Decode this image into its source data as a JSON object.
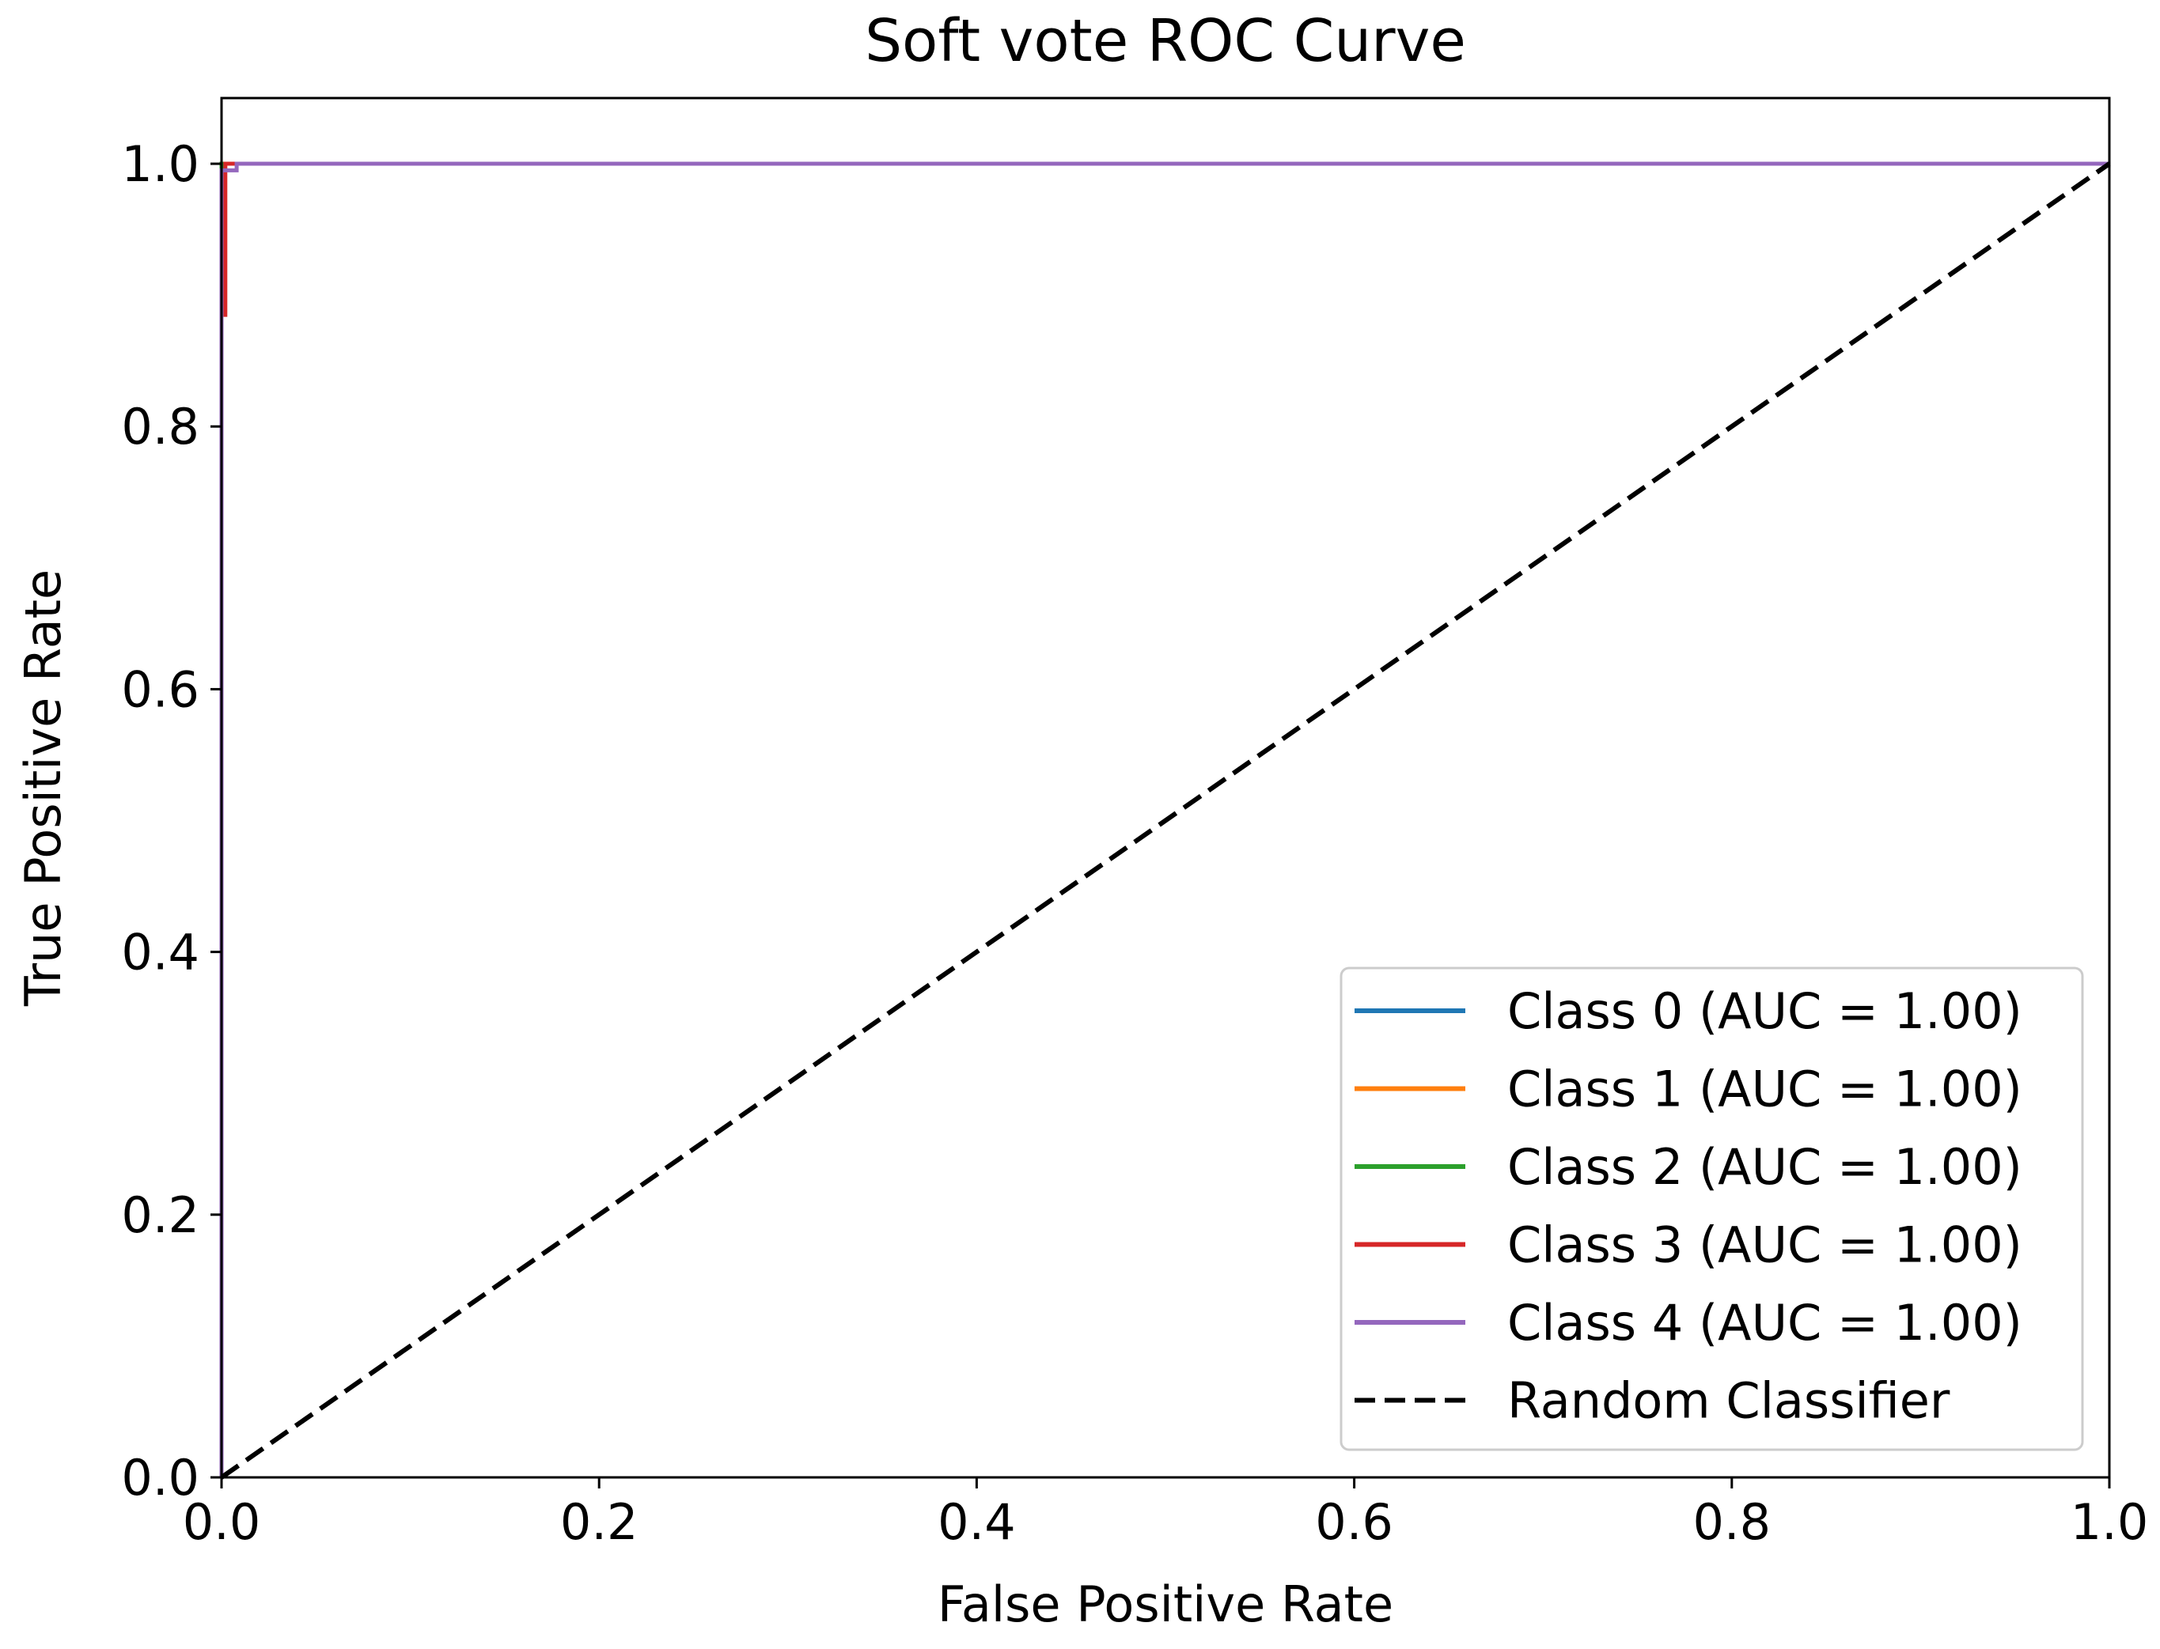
{
  "chart_data": {
    "type": "line",
    "title": "Soft vote ROC Curve",
    "xlabel": "False Positive Rate",
    "ylabel": "True Positive Rate",
    "xlim": [
      0.0,
      1.0
    ],
    "ylim": [
      0.0,
      1.05
    ],
    "xticks": [
      0.0,
      0.2,
      0.4,
      0.6,
      0.8,
      1.0
    ],
    "yticks": [
      0.0,
      0.2,
      0.4,
      0.6,
      0.8,
      1.0
    ],
    "xtick_labels": [
      "0.0",
      "0.2",
      "0.4",
      "0.6",
      "0.8",
      "1.0"
    ],
    "ytick_labels": [
      "0.0",
      "0.2",
      "0.4",
      "0.6",
      "0.8",
      "1.0"
    ],
    "grid": false,
    "legend_position": "lower-right",
    "series": [
      {
        "name": "Class 0 (AUC = 1.00)",
        "color": "#1f77b4",
        "style": "solid",
        "x": [
          0.0,
          0.0,
          1.0
        ],
        "y": [
          0.0,
          1.0,
          1.0
        ]
      },
      {
        "name": "Class 1 (AUC = 1.00)",
        "color": "#ff7f0e",
        "style": "solid",
        "x": [
          0.0,
          0.0,
          1.0
        ],
        "y": [
          0.0,
          1.0,
          1.0
        ]
      },
      {
        "name": "Class 2 (AUC = 1.00)",
        "color": "#2ca02c",
        "style": "solid",
        "x": [
          0.0,
          0.0,
          1.0
        ],
        "y": [
          0.0,
          1.0,
          1.0
        ]
      },
      {
        "name": "Class 3 (AUC = 1.00)",
        "color": "#d62728",
        "style": "solid",
        "x": [
          0.0,
          0.0,
          0.002,
          0.002,
          1.0
        ],
        "y": [
          0.0,
          0.885,
          0.885,
          1.0,
          1.0
        ]
      },
      {
        "name": "Class 4 (AUC = 1.00)",
        "color": "#9467bd",
        "style": "solid",
        "x": [
          0.0,
          0.0,
          0.008,
          0.008,
          1.0
        ],
        "y": [
          0.0,
          0.995,
          0.995,
          1.0,
          1.0
        ]
      },
      {
        "name": "Random Classifier",
        "color": "#000000",
        "style": "dashed",
        "x": [
          0.0,
          1.0
        ],
        "y": [
          0.0,
          1.0
        ]
      }
    ]
  }
}
